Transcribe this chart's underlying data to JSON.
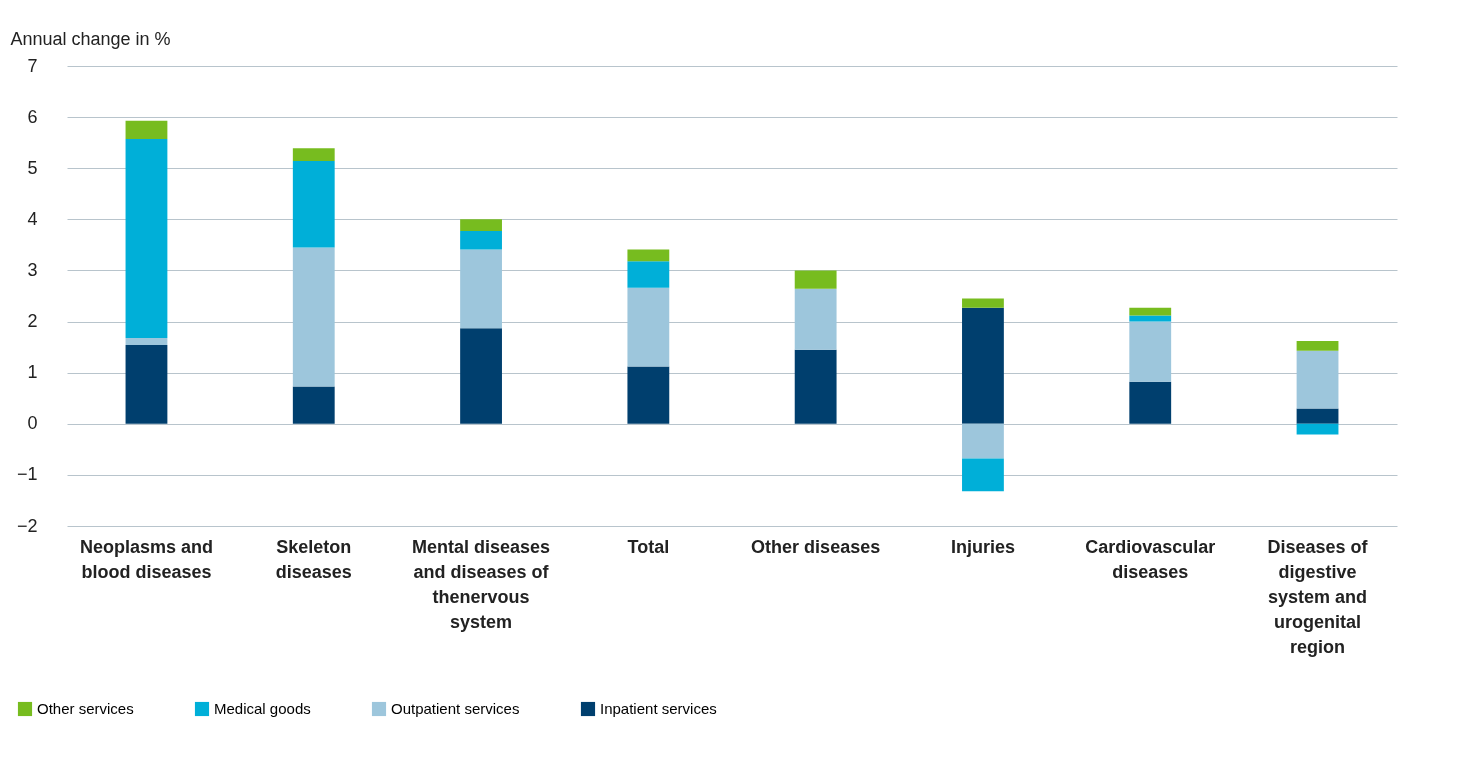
{
  "chart_data": {
    "type": "bar",
    "stacked": true,
    "ylabel": "Annual change in %",
    "categories": [
      "Neoplasms and  blood diseases",
      "Skeleton diseases",
      "Mental diseases and diseases of thenervous system",
      "Total",
      "Other diseases",
      "Injuries",
      "Cardiovascular diseases",
      "Diseases of digestive system and urogenital region"
    ],
    "series": [
      {
        "name": "Inpatient services",
        "color": "#003f6e",
        "values": [
          1.54,
          0.73,
          1.87,
          1.12,
          1.45,
          2.27,
          0.82,
          0.3
        ]
      },
      {
        "name": "Outpatient services",
        "color": "#9dc6dc",
        "values": [
          0.14,
          2.72,
          1.54,
          1.54,
          1.19,
          -0.68,
          1.18,
          1.13
        ]
      },
      {
        "name": "Medical goods",
        "color": "#00afd8",
        "values": [
          3.89,
          1.69,
          0.36,
          0.52,
          0,
          -0.64,
          0.12,
          -0.21
        ]
      },
      {
        "name": "Other services",
        "color": "#77bc1f",
        "values": [
          0.36,
          0.25,
          0.23,
          0.23,
          0.36,
          0.18,
          0.15,
          0.19
        ]
      }
    ],
    "ylim": [
      -2,
      7
    ],
    "yticks": [
      -2,
      -1,
      0,
      1,
      2,
      3,
      4,
      5,
      6,
      7
    ],
    "grid": "y",
    "legend": "bottom left"
  }
}
